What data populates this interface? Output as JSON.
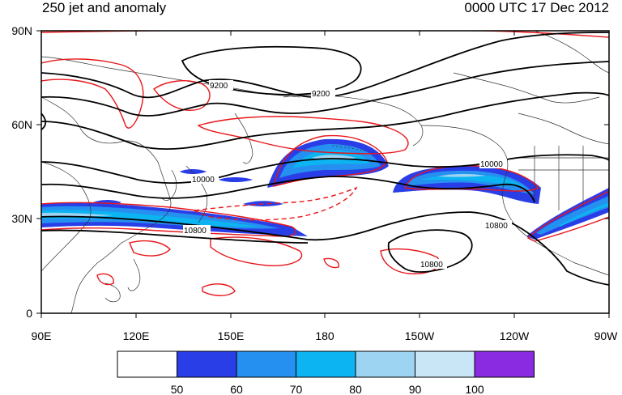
{
  "title_left": "250 jet and anomaly",
  "title_right": "0000 UTC 17 Dec 2012",
  "map": {
    "lon_range": [
      "90E",
      "90W"
    ],
    "lat_range": [
      0,
      90
    ],
    "x_ticks": [
      "90E",
      "120E",
      "150E",
      "180",
      "150W",
      "120W",
      "90W"
    ],
    "y_ticks": [
      "90N",
      "60N",
      "30N",
      "0"
    ],
    "contour_labels": [
      "9200",
      "9200",
      "10000",
      "10000",
      "10800",
      "10800",
      "10800"
    ]
  },
  "colorbar": {
    "labels": [
      "50",
      "60",
      "70",
      "80",
      "90",
      "100"
    ],
    "colors": [
      "#ffffff",
      "#2a3ee8",
      "#2590ef",
      "#0cb4f2",
      "#9cd4f1",
      "#c9e6f6",
      "#8a2be2"
    ]
  },
  "colors": {
    "height_contour": "#000000",
    "anomaly_contour": "#e8161b",
    "coastline": "#333333"
  }
}
